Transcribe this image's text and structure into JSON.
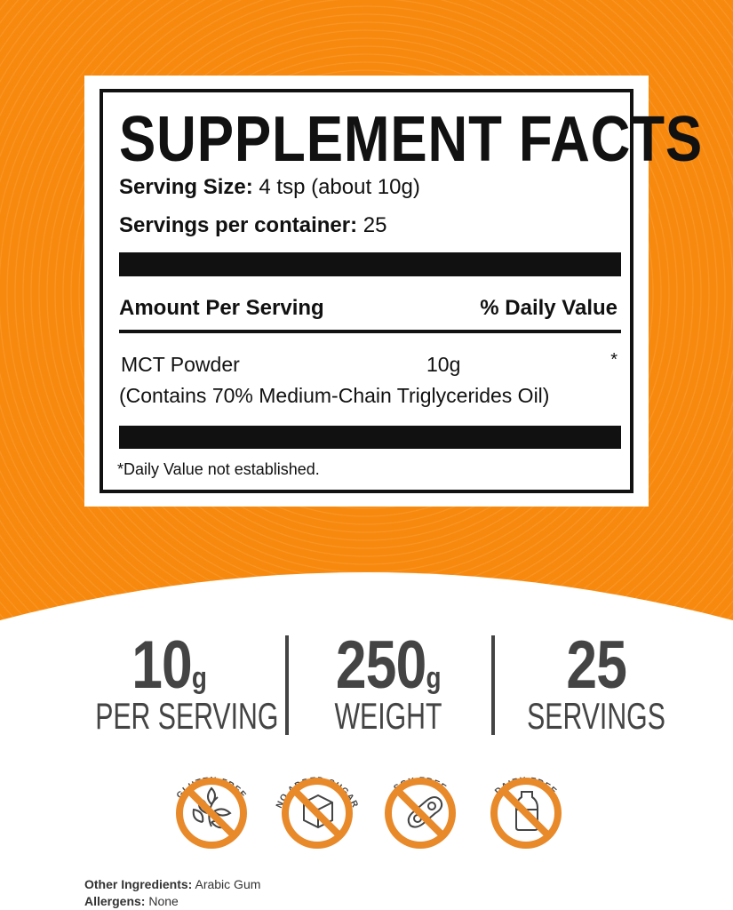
{
  "colors": {
    "orange": "#F7890F",
    "badge_orange": "#E8892A",
    "text_dark": "#111111",
    "stat_gray": "#444444"
  },
  "label": {
    "title": "SUPPLEMENT FACTS",
    "serving_size_label": "Serving Size:",
    "serving_size_value": "4 tsp (about 10g)",
    "servings_label": "Servings per container:",
    "servings_value": "25",
    "amount_header": "Amount Per Serving",
    "dv_header": "% Daily Value",
    "ingredient": {
      "name": "MCT Powder",
      "amount": "10g",
      "dv": "*",
      "note": "(Contains 70% Medium-Chain Triglycerides Oil)"
    },
    "footnote": "*Daily Value not established."
  },
  "stats": [
    {
      "value": "10",
      "unit": "g",
      "label": "PER SERVING"
    },
    {
      "value": "250",
      "unit": "g",
      "label": "WEIGHT"
    },
    {
      "value": "25",
      "unit": "",
      "label": "SERVINGS"
    }
  ],
  "badges": [
    {
      "label": "GLUTEN FREE",
      "icon": "wheat-icon"
    },
    {
      "label": "NO ADDED SUGAR",
      "icon": "sugar-cube-icon"
    },
    {
      "label": "SOY FREE",
      "icon": "soybean-icon"
    },
    {
      "label": "DAIRY FREE",
      "icon": "milk-bottle-icon"
    }
  ],
  "footer": {
    "ingredients_label": "Other Ingredients:",
    "ingredients_value": "Arabic Gum",
    "allergens_label": "Allergens:",
    "allergens_value": "None"
  }
}
